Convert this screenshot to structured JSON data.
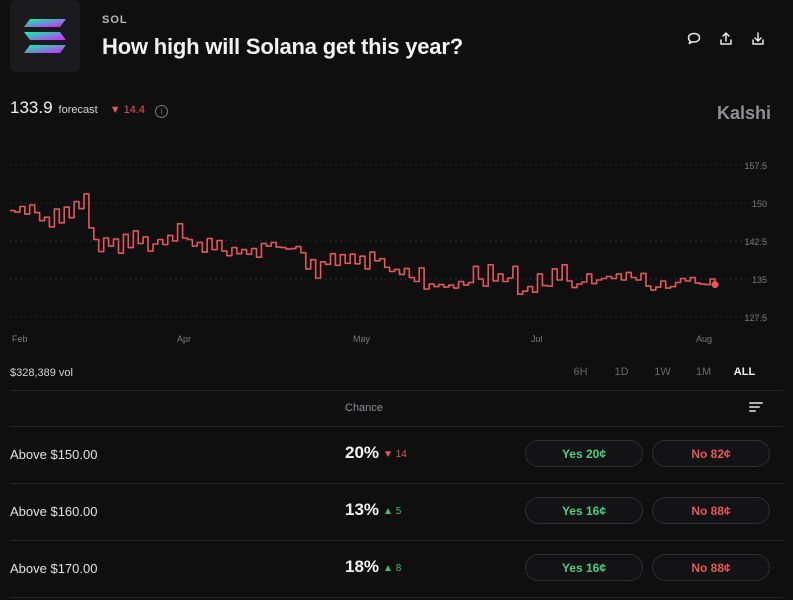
{
  "market": {
    "ticker": "SOL",
    "title": "How high will Solana get this year?"
  },
  "header_icons": [
    "comment-icon",
    "share-icon",
    "download-icon"
  ],
  "forecast": {
    "value": "133.9",
    "label": "forecast",
    "delta": "14.4",
    "delta_direction": "down",
    "info_glyph": "i"
  },
  "brand": "Kalshi",
  "volume": "$328,389 vol",
  "range_tabs": [
    {
      "label": "6H",
      "active": false
    },
    {
      "label": "1D",
      "active": false
    },
    {
      "label": "1W",
      "active": false
    },
    {
      "label": "1M",
      "active": false
    },
    {
      "label": "ALL",
      "active": true
    }
  ],
  "table": {
    "chance_header": "Chance",
    "rows": [
      {
        "label": "Above $150.00",
        "chance": "20%",
        "change": "14",
        "direction": "down",
        "yes": "Yes 20¢",
        "no": "No 82¢"
      },
      {
        "label": "Above $160.00",
        "chance": "13%",
        "change": "5",
        "direction": "up",
        "yes": "Yes 16¢",
        "no": "No 88¢"
      },
      {
        "label": "Above $170.00",
        "chance": "18%",
        "change": "8",
        "direction": "up",
        "yes": "Yes 16¢",
        "no": "No 88¢"
      }
    ]
  },
  "colors": {
    "background": "#0f0f10",
    "line": "#e5565f",
    "yes": "#4fcc85",
    "no": "#e5565f"
  },
  "chart_data": {
    "type": "line",
    "x_tick_labels": [
      "Feb",
      "Apr",
      "May",
      "Jul",
      "Aug"
    ],
    "y_ticks": [
      127.5,
      135,
      142.5,
      150,
      157.5
    ],
    "ylim": [
      125,
      160
    ],
    "grid": true,
    "series": [
      {
        "values": [
          148.5,
          148.2,
          149.3,
          147.8,
          149.6,
          148.1,
          146.5,
          147.2,
          145.3,
          148.8,
          146.1,
          149.2,
          147.1,
          150.3,
          148.9,
          151.8,
          145.1,
          142.8,
          140.4,
          143.1,
          141.5,
          142.9,
          140.1,
          143.8,
          141.2,
          144.5,
          142.0,
          143.3,
          140.5,
          141.9,
          142.8,
          141.8,
          143.6,
          142.5,
          145.9,
          143.1,
          142.8,
          141.5,
          142.2,
          140.3,
          143.0,
          140.8,
          142.6,
          140.5,
          139.6,
          141.2,
          140.0,
          140.8,
          139.9,
          141.0,
          139.3,
          142.0,
          141.5,
          142.2,
          141.3,
          141.2,
          140.9,
          141.0,
          141.4,
          140.2,
          137.0,
          138.8,
          135.2,
          138.4,
          137.9,
          140.0,
          137.7,
          139.8,
          138.1,
          139.9,
          138.0,
          139.5,
          137.0,
          140.3,
          138.6,
          139.0,
          137.3,
          136.5,
          136.9,
          135.9,
          137.1,
          135.3,
          134.5,
          137.2,
          133.0,
          134.0,
          133.5,
          133.9,
          133.4,
          133.8,
          133.2,
          134.5,
          133.8,
          134.3,
          137.5,
          135.0,
          133.6,
          137.8,
          134.6,
          136.0,
          134.5,
          135.2,
          137.5,
          132.0,
          132.6,
          133.5,
          132.4,
          136.0,
          133.7,
          133.6,
          137.0,
          134.8,
          137.8,
          134.6,
          133.3,
          134.0,
          134.4,
          136.0,
          134.1,
          134.8,
          135.1,
          135.5,
          135.1,
          136.0,
          134.8,
          136.3,
          135.3,
          134.8,
          136.1,
          133.6,
          132.8,
          133.4,
          134.6,
          133.2,
          133.5,
          134.3,
          135.1,
          134.6,
          135.3,
          134.2,
          134.0,
          133.9,
          135.0,
          133.9
        ]
      }
    ]
  }
}
